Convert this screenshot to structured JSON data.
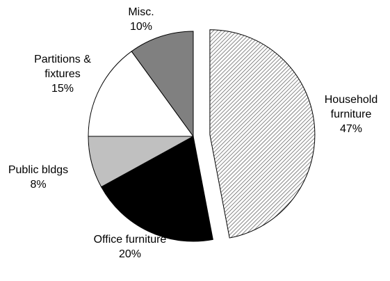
{
  "chart_data": {
    "type": "pie",
    "categories": [
      "Household furniture",
      "Office furniture",
      "Public bldgs",
      "Partitions & fixtures",
      "Misc."
    ],
    "values": [
      47,
      20,
      8,
      15,
      10
    ],
    "value_labels": [
      "47%",
      "20%",
      "8%",
      "15%",
      "10%"
    ],
    "colors": [
      "#ffffff",
      "#000000",
      "#c0c0c0",
      "#ffffff",
      "#808080"
    ],
    "hatch": [
      true,
      false,
      false,
      false,
      false
    ],
    "explode": [
      true,
      false,
      false,
      false,
      false
    ]
  }
}
